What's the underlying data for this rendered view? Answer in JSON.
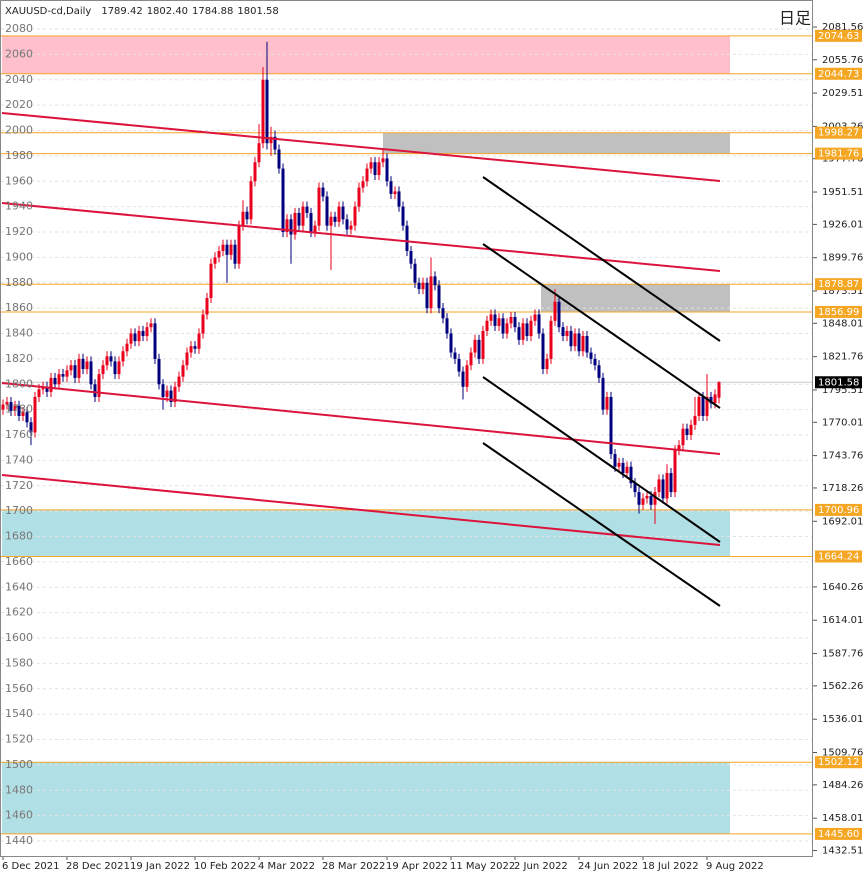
{
  "header": {
    "symbol": "XAUUSD-cd,Daily",
    "prices": [
      "1789.42",
      "1802.40",
      "1784.88",
      "1801.58"
    ],
    "timeframe": "日足"
  },
  "chart_data": {
    "type": "candlestick",
    "up_color": "#e8001c",
    "down_color": "#00007f",
    "level_color": "#f5a623",
    "grid": true,
    "ylim": [
      1427.4,
      2102.86
    ],
    "yticks": [
      1440,
      1460,
      1480,
      1500,
      1520,
      1540,
      1560,
      1580,
      1600,
      1620,
      1640,
      1660,
      1680,
      1700,
      1720,
      1740,
      1760,
      1780,
      1800,
      1820,
      1840,
      1860,
      1880,
      1900,
      1920,
      1940,
      1960,
      1980,
      2000,
      2020,
      2040,
      2060,
      2080
    ],
    "y2lim": [
      1427.4,
      2102.86
    ],
    "y2ticks": [
      2081.56,
      2055.76,
      2029.51,
      2003.26,
      1977.76,
      1951.51,
      1926.01,
      1899.76,
      1873.51,
      1848.01,
      1821.76,
      1795.51,
      1770.01,
      1743.76,
      1718.26,
      1692.01,
      1640.26,
      1614.01,
      1587.76,
      1562.26,
      1536.01,
      1509.76,
      1484.26,
      1458.01,
      1432.51
    ],
    "levels": [
      2074.63,
      2044.73,
      1998.27,
      1981.76,
      1878.87,
      1856.99,
      1700.96,
      1664.24,
      1502.12,
      {
        "value": 1445.6,
        "label": "1445.60"
      }
    ],
    "categories": [
      "6 Dec 2021",
      null,
      null,
      null,
      null,
      null,
      null,
      null,
      null,
      null,
      null,
      null,
      null,
      null,
      null,
      null,
      "28 Dec 2021",
      null,
      null,
      null,
      null,
      null,
      null,
      null,
      null,
      null,
      null,
      null,
      null,
      null,
      null,
      null,
      "19 Jan 2022",
      null,
      null,
      null,
      null,
      null,
      null,
      null,
      null,
      null,
      null,
      null,
      null,
      null,
      null,
      null,
      "10 Feb 2022",
      null,
      null,
      null,
      null,
      null,
      null,
      null,
      null,
      null,
      null,
      null,
      null,
      null,
      null,
      null,
      "4 Mar 2022",
      null,
      null,
      null,
      null,
      null,
      null,
      null,
      null,
      null,
      null,
      null,
      null,
      null,
      null,
      null,
      "28 Mar 2022",
      null,
      null,
      null,
      null,
      null,
      null,
      null,
      null,
      null,
      null,
      null,
      null,
      null,
      null,
      null,
      "19 Apr 2022",
      null,
      null,
      null,
      null,
      null,
      null,
      null,
      null,
      null,
      null,
      null,
      null,
      null,
      null,
      null,
      "11 May 2022",
      null,
      null,
      null,
      null,
      null,
      null,
      null,
      null,
      null,
      null,
      null,
      null,
      null,
      null,
      null,
      "2 Jun 2022",
      null,
      null,
      null,
      null,
      null,
      null,
      null,
      null,
      null,
      null,
      null,
      null,
      null,
      null,
      null,
      "24 Jun 2022",
      null,
      null,
      null,
      null,
      null,
      null,
      null,
      null,
      null,
      null,
      null,
      null,
      null,
      null,
      null,
      "18 Jul 2022",
      null,
      null,
      null,
      null,
      null,
      null,
      null,
      null,
      null,
      null,
      null,
      null,
      null,
      null,
      null,
      "9 Aug 2022",
      null,
      null,
      null
    ],
    "open": [
      1780,
      1784,
      1786,
      1779,
      1783,
      1775,
      1778,
      1770,
      1762,
      1790,
      1796,
      1798,
      1794,
      1805,
      1800,
      1808,
      1806,
      1811,
      1815,
      1805,
      1820,
      1812,
      1818,
      1800,
      1790,
      1808,
      1815,
      1822,
      1818,
      1808,
      1818,
      1826,
      1832,
      1840,
      1834,
      1842,
      1838,
      1845,
      1848,
      1820,
      1800,
      1790,
      1795,
      1786,
      1798,
      1806,
      1815,
      1825,
      1830,
      1828,
      1840,
      1855,
      1868,
      1895,
      1900,
      1905,
      1910,
      1902,
      1910,
      1895,
      1925,
      1936,
      1930,
      1960,
      1975,
      1990,
      2040,
      1990,
      1995,
      1985,
      1970,
      1920,
      1930,
      1918,
      1935,
      1925,
      1940,
      1935,
      1920,
      1925,
      1955,
      1948,
      1925,
      1932,
      1928,
      1940,
      1930,
      1922,
      1925,
      1940,
      1955,
      1960,
      1970,
      1975,
      1965,
      1975,
      1978,
      1960,
      1950,
      1952,
      1940,
      1925,
      1905,
      1895,
      1880,
      1875,
      1880,
      1860,
      1885,
      1878,
      1860,
      1852,
      1840,
      1825,
      1820,
      1810,
      1798,
      1815,
      1825,
      1835,
      1820,
      1842,
      1850,
      1855,
      1846,
      1852,
      1840,
      1848,
      1853,
      1845,
      1835,
      1848,
      1838,
      1850,
      1855,
      1840,
      1812,
      1820,
      1850,
      1865,
      1845,
      1838,
      1842,
      1830,
      1840,
      1826,
      1838,
      1825,
      1820,
      1815,
      1805,
      1780,
      1790,
      1745,
      1735,
      1738,
      1730,
      1735,
      1722,
      1715,
      1705,
      1710,
      1712,
      1705,
      1715,
      1725,
      1710,
      1730,
      1715,
      1748,
      1752,
      1765,
      1760,
      1768,
      1775,
      1790,
      1775,
      1790,
      1785,
      1789.42
    ],
    "high": [
      1788,
      1790,
      1790,
      1787,
      1787,
      1782,
      1782,
      1774,
      1794,
      1800,
      1802,
      1802,
      1809,
      1809,
      1812,
      1812,
      1815,
      1819,
      1819,
      1824,
      1824,
      1822,
      1822,
      1804,
      1812,
      1819,
      1826,
      1826,
      1822,
      1822,
      1830,
      1836,
      1844,
      1844,
      1846,
      1846,
      1849,
      1852,
      1852,
      1824,
      1804,
      1799,
      1799,
      1802,
      1810,
      1819,
      1829,
      1834,
      1834,
      1844,
      1859,
      1872,
      1899,
      1904,
      1909,
      1914,
      1914,
      1914,
      1914,
      1929,
      1945,
      1940,
      1964,
      1979,
      2005,
      2050,
      2070,
      2003,
      2000,
      1989,
      1974,
      1934,
      1934,
      1939,
      1939,
      1944,
      1944,
      1939,
      1929,
      1959,
      1959,
      1952,
      1936,
      1936,
      1944,
      1944,
      1934,
      1929,
      1944,
      1959,
      1964,
      1974,
      1979,
      1979,
      1979,
      1985,
      1982,
      1964,
      1956,
      1956,
      1944,
      1929,
      1909,
      1899,
      1884,
      1884,
      1884,
      1900,
      1889,
      1882,
      1864,
      1856,
      1844,
      1829,
      1824,
      1814,
      1819,
      1829,
      1839,
      1839,
      1846,
      1854,
      1859,
      1859,
      1856,
      1856,
      1852,
      1857,
      1857,
      1849,
      1852,
      1852,
      1854,
      1859,
      1859,
      1844,
      1824,
      1854,
      1875,
      1869,
      1849,
      1846,
      1846,
      1844,
      1844,
      1842,
      1842,
      1829,
      1824,
      1819,
      1809,
      1794,
      1794,
      1749,
      1742,
      1742,
      1739,
      1739,
      1726,
      1719,
      1714,
      1716,
      1716,
      1719,
      1729,
      1729,
      1737,
      1734,
      1752,
      1756,
      1769,
      1769,
      1772,
      1790,
      1794,
      1794,
      1808,
      1794,
      1796,
      1802.4
    ],
    "low": [
      1776,
      1780,
      1775,
      1775,
      1771,
      1771,
      1766,
      1752,
      1758,
      1786,
      1792,
      1790,
      1790,
      1796,
      1796,
      1802,
      1802,
      1807,
      1801,
      1801,
      1808,
      1808,
      1796,
      1786,
      1786,
      1804,
      1811,
      1814,
      1804,
      1804,
      1814,
      1822,
      1828,
      1830,
      1830,
      1834,
      1834,
      1841,
      1816,
      1796,
      1780,
      1786,
      1782,
      1782,
      1794,
      1802,
      1811,
      1821,
      1824,
      1824,
      1836,
      1851,
      1864,
      1891,
      1896,
      1901,
      1880,
      1898,
      1891,
      1891,
      1921,
      1926,
      1926,
      1956,
      1971,
      1986,
      1985,
      1980,
      1981,
      1966,
      1916,
      1916,
      1895,
      1914,
      1921,
      1921,
      1931,
      1916,
      1916,
      1921,
      1944,
      1921,
      1890,
      1924,
      1924,
      1926,
      1918,
      1918,
      1921,
      1936,
      1951,
      1956,
      1966,
      1961,
      1961,
      1971,
      1956,
      1946,
      1946,
      1936,
      1921,
      1901,
      1891,
      1876,
      1871,
      1871,
      1856,
      1856,
      1874,
      1856,
      1848,
      1836,
      1821,
      1816,
      1806,
      1788,
      1794,
      1811,
      1821,
      1816,
      1816,
      1838,
      1846,
      1842,
      1842,
      1836,
      1836,
      1844,
      1841,
      1831,
      1831,
      1834,
      1834,
      1846,
      1836,
      1808,
      1808,
      1816,
      1846,
      1841,
      1834,
      1834,
      1826,
      1826,
      1822,
      1822,
      1821,
      1816,
      1811,
      1801,
      1776,
      1776,
      1741,
      1731,
      1731,
      1726,
      1726,
      1718,
      1711,
      1698,
      1701,
      1706,
      1701,
      1690,
      1711,
      1706,
      1706,
      1711,
      1711,
      1744,
      1748,
      1756,
      1756,
      1764,
      1771,
      1771,
      1771,
      1781,
      1781,
      1784.88
    ],
    "close": [
      1784,
      1786,
      1779,
      1783,
      1775,
      1778,
      1770,
      1762,
      1790,
      1796,
      1798,
      1794,
      1805,
      1800,
      1808,
      1806,
      1811,
      1815,
      1805,
      1820,
      1812,
      1818,
      1800,
      1790,
      1808,
      1815,
      1822,
      1818,
      1808,
      1818,
      1826,
      1832,
      1840,
      1834,
      1842,
      1838,
      1845,
      1848,
      1820,
      1800,
      1790,
      1795,
      1786,
      1798,
      1806,
      1815,
      1825,
      1830,
      1828,
      1840,
      1855,
      1868,
      1895,
      1900,
      1905,
      1910,
      1902,
      1910,
      1895,
      1925,
      1936,
      1930,
      1960,
      1975,
      1990,
      2040,
      1990,
      1995,
      1985,
      1970,
      1920,
      1930,
      1918,
      1935,
      1925,
      1940,
      1935,
      1920,
      1925,
      1955,
      1948,
      1925,
      1932,
      1928,
      1940,
      1930,
      1922,
      1925,
      1940,
      1955,
      1960,
      1970,
      1975,
      1965,
      1975,
      1978,
      1960,
      1950,
      1952,
      1940,
      1925,
      1905,
      1895,
      1880,
      1875,
      1880,
      1860,
      1885,
      1878,
      1860,
      1852,
      1840,
      1825,
      1820,
      1810,
      1798,
      1815,
      1825,
      1835,
      1820,
      1842,
      1850,
      1855,
      1846,
      1852,
      1840,
      1848,
      1853,
      1845,
      1835,
      1848,
      1838,
      1850,
      1855,
      1840,
      1812,
      1820,
      1850,
      1865,
      1845,
      1838,
      1842,
      1830,
      1840,
      1826,
      1838,
      1825,
      1820,
      1815,
      1805,
      1780,
      1790,
      1745,
      1735,
      1738,
      1730,
      1735,
      1722,
      1715,
      1705,
      1710,
      1712,
      1705,
      1715,
      1725,
      1710,
      1730,
      1715,
      1748,
      1752,
      1765,
      1760,
      1768,
      1775,
      1790,
      1775,
      1790,
      1785,
      1792,
      1801.58
    ]
  }
}
